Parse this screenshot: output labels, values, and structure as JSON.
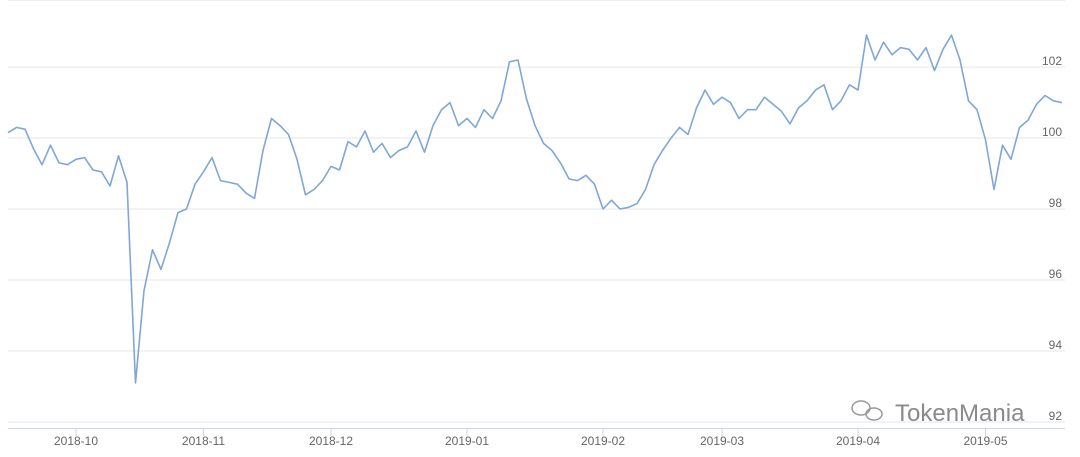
{
  "chart_data": {
    "type": "line",
    "categories": [
      null,
      null,
      null,
      null,
      null,
      null,
      null,
      null,
      "2018-10",
      null,
      null,
      null,
      null,
      null,
      null,
      null,
      null,
      null,
      null,
      null,
      null,
      null,
      null,
      "2018-11",
      null,
      null,
      null,
      null,
      null,
      null,
      null,
      null,
      null,
      null,
      null,
      null,
      null,
      null,
      "2018-12",
      null,
      null,
      null,
      null,
      null,
      null,
      null,
      null,
      null,
      null,
      null,
      null,
      null,
      null,
      null,
      "2019-01",
      null,
      null,
      null,
      null,
      null,
      null,
      null,
      null,
      null,
      null,
      null,
      null,
      null,
      null,
      null,
      "2019-02",
      null,
      null,
      null,
      null,
      null,
      null,
      null,
      null,
      null,
      null,
      null,
      null,
      null,
      "2019-03",
      null,
      null,
      null,
      null,
      null,
      null,
      null,
      null,
      null,
      null,
      null,
      null,
      null,
      null,
      null,
      "2019-04",
      null,
      null,
      null,
      null,
      null,
      null,
      null,
      null,
      null,
      null,
      null,
      null,
      null,
      null,
      "2019-05",
      null,
      null,
      null,
      null,
      null,
      null,
      null,
      null,
      null
    ],
    "series": [
      {
        "name": null,
        "color": "#7ea7d8",
        "values": [
          100.15,
          100.3,
          100.25,
          99.7,
          99.25,
          99.8,
          99.3,
          99.25,
          99.4,
          99.45,
          99.1,
          99.05,
          98.65,
          99.5,
          98.75,
          93.1,
          95.7,
          96.85,
          96.3,
          97.05,
          97.9,
          98.0,
          98.7,
          99.05,
          99.45,
          98.8,
          98.75,
          98.7,
          98.45,
          98.3,
          99.65,
          100.55,
          100.35,
          100.1,
          99.4,
          98.4,
          98.55,
          98.8,
          99.2,
          99.1,
          99.9,
          99.75,
          100.2,
          99.6,
          99.85,
          99.45,
          99.65,
          99.75,
          100.2,
          99.6,
          100.35,
          100.8,
          101.0,
          100.35,
          100.55,
          100.3,
          100.8,
          100.55,
          101.05,
          102.15,
          102.2,
          101.1,
          100.35,
          99.85,
          99.65,
          99.3,
          98.85,
          98.8,
          98.95,
          98.7,
          98.0,
          98.25,
          98.0,
          98.05,
          98.15,
          98.55,
          99.25,
          99.65,
          100.0,
          100.3,
          100.1,
          100.85,
          101.35,
          100.95,
          101.15,
          101.0,
          100.55,
          100.8,
          100.8,
          101.15,
          100.95,
          100.75,
          100.4,
          100.85,
          101.05,
          101.35,
          101.5,
          100.8,
          101.05,
          101.5,
          101.35,
          102.9,
          102.2,
          102.7,
          102.35,
          102.55,
          102.5,
          102.2,
          102.55,
          101.9,
          102.5,
          102.9,
          102.2,
          101.05,
          100.8,
          99.95,
          98.55,
          99.8,
          99.4,
          100.3,
          100.5,
          100.95,
          101.2,
          101.05,
          101.0
        ]
      }
    ],
    "ylim": [
      91.83,
      103.89
    ],
    "yticks": [
      92,
      94,
      96,
      98,
      100,
      102
    ],
    "grid": true,
    "watermark": "TokenMania"
  }
}
